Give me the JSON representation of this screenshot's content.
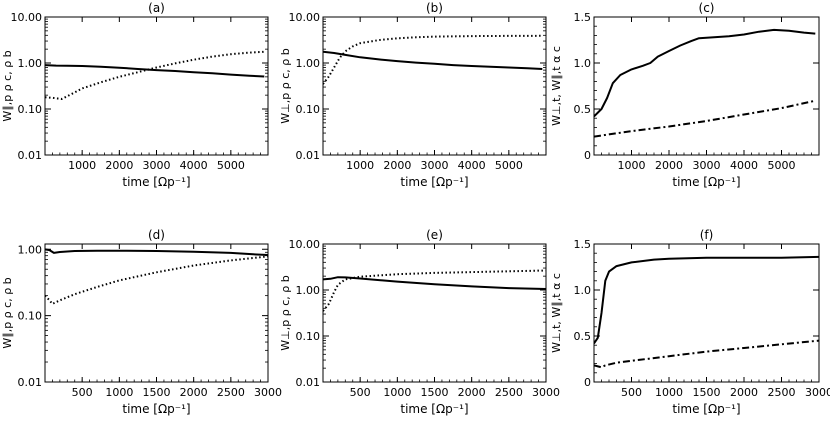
{
  "chart_data": [
    {
      "type": "line",
      "title": "(a)",
      "xlabel": "time [Ωp⁻¹]",
      "ylabel": "W∥,p ρ c, ρ b",
      "xlim": [
        0,
        6000
      ],
      "ylim": [
        0.01,
        10
      ],
      "yscale": "log",
      "xticks": [
        1000,
        2000,
        3000,
        4000,
        5000
      ],
      "yticks": [
        0.01,
        0.1,
        1,
        10
      ],
      "ytick_labels": [
        "0.01",
        "0.10",
        "1.00",
        "10.00"
      ],
      "series": [
        {
          "style": "solid",
          "points": [
            [
              0,
              0.9
            ],
            [
              300,
              0.88
            ],
            [
              600,
              0.87
            ],
            [
              1000,
              0.86
            ],
            [
              1500,
              0.83
            ],
            [
              2000,
              0.79
            ],
            [
              2500,
              0.74
            ],
            [
              3000,
              0.7
            ],
            [
              3500,
              0.67
            ],
            [
              4000,
              0.63
            ],
            [
              4500,
              0.6
            ],
            [
              5000,
              0.56
            ],
            [
              5500,
              0.53
            ],
            [
              5900,
              0.51
            ]
          ]
        },
        {
          "style": "dotted",
          "points": [
            [
              0,
              0.18
            ],
            [
              200,
              0.175
            ],
            [
              450,
              0.165
            ],
            [
              600,
              0.19
            ],
            [
              800,
              0.23
            ],
            [
              1000,
              0.28
            ],
            [
              1500,
              0.38
            ],
            [
              2000,
              0.5
            ],
            [
              2500,
              0.63
            ],
            [
              3000,
              0.8
            ],
            [
              3500,
              0.98
            ],
            [
              4000,
              1.18
            ],
            [
              4500,
              1.38
            ],
            [
              5000,
              1.55
            ],
            [
              5500,
              1.68
            ],
            [
              5900,
              1.75
            ]
          ]
        }
      ]
    },
    {
      "type": "line",
      "title": "(b)",
      "xlabel": "time [Ωp⁻¹]",
      "ylabel": "W⊥,p ρ c, ρ b",
      "xlim": [
        0,
        6000
      ],
      "ylim": [
        0.01,
        10
      ],
      "yscale": "log",
      "xticks": [
        1000,
        2000,
        3000,
        4000,
        5000
      ],
      "yticks": [
        0.01,
        0.1,
        1,
        10
      ],
      "ytick_labels": [
        "0.01",
        "0.10",
        "1.00",
        "10.00"
      ],
      "series": [
        {
          "style": "solid",
          "points": [
            [
              0,
              1.75
            ],
            [
              300,
              1.65
            ],
            [
              600,
              1.5
            ],
            [
              1000,
              1.33
            ],
            [
              1500,
              1.2
            ],
            [
              2000,
              1.1
            ],
            [
              2500,
              1.02
            ],
            [
              3000,
              0.96
            ],
            [
              3500,
              0.9
            ],
            [
              4000,
              0.86
            ],
            [
              4500,
              0.83
            ],
            [
              5000,
              0.8
            ],
            [
              5500,
              0.77
            ],
            [
              5900,
              0.74
            ]
          ]
        },
        {
          "style": "dotted",
          "points": [
            [
              0,
              0.35
            ],
            [
              150,
              0.5
            ],
            [
              300,
              0.8
            ],
            [
              450,
              1.3
            ],
            [
              600,
              1.8
            ],
            [
              800,
              2.3
            ],
            [
              1000,
              2.7
            ],
            [
              1500,
              3.15
            ],
            [
              2000,
              3.45
            ],
            [
              2500,
              3.62
            ],
            [
              3000,
              3.75
            ],
            [
              4000,
              3.85
            ],
            [
              5000,
              3.88
            ],
            [
              5900,
              3.9
            ]
          ]
        }
      ]
    },
    {
      "type": "line",
      "title": "(c)",
      "xlabel": "time [Ωp⁻¹]",
      "ylabel": "W⊥,t, W∥,t α c",
      "xlim": [
        0,
        6000
      ],
      "ylim": [
        0,
        1.5
      ],
      "yscale": "linear",
      "xticks": [
        1000,
        2000,
        3000,
        4000,
        5000
      ],
      "yticks": [
        0,
        0.5,
        1,
        1.5
      ],
      "ytick_labels": [
        "0",
        "0.5",
        "1.0",
        "1.5"
      ],
      "series": [
        {
          "style": "solid",
          "points": [
            [
              0,
              0.42
            ],
            [
              200,
              0.5
            ],
            [
              350,
              0.62
            ],
            [
              500,
              0.78
            ],
            [
              700,
              0.87
            ],
            [
              1000,
              0.93
            ],
            [
              1300,
              0.97
            ],
            [
              1500,
              1.0
            ],
            [
              1700,
              1.07
            ],
            [
              2000,
              1.13
            ],
            [
              2300,
              1.19
            ],
            [
              2600,
              1.24
            ],
            [
              2800,
              1.27
            ],
            [
              3200,
              1.28
            ],
            [
              3600,
              1.29
            ],
            [
              4000,
              1.31
            ],
            [
              4400,
              1.34
            ],
            [
              4800,
              1.36
            ],
            [
              5200,
              1.35
            ],
            [
              5600,
              1.33
            ],
            [
              5900,
              1.32
            ]
          ]
        },
        {
          "style": "dashdot",
          "points": [
            [
              0,
              0.2
            ],
            [
              1000,
              0.26
            ],
            [
              2000,
              0.31
            ],
            [
              3000,
              0.37
            ],
            [
              4000,
              0.44
            ],
            [
              5000,
              0.51
            ],
            [
              5900,
              0.59
            ]
          ]
        }
      ]
    },
    {
      "type": "line",
      "title": "(d)",
      "xlabel": "time [Ωp⁻¹]",
      "ylabel": "W∥,p ρ c, ρ b",
      "xlim": [
        0,
        3000
      ],
      "ylim": [
        0.01,
        1.2
      ],
      "yscale": "log",
      "xticks": [
        500,
        1000,
        1500,
        2000,
        2500,
        3000
      ],
      "yticks": [
        0.01,
        0.1,
        1
      ],
      "ytick_labels": [
        "0.01",
        "0.10",
        "1.00"
      ],
      "series": [
        {
          "style": "solid",
          "points": [
            [
              0,
              1.0
            ],
            [
              60,
              0.97
            ],
            [
              120,
              0.88
            ],
            [
              200,
              0.91
            ],
            [
              400,
              0.94
            ],
            [
              700,
              0.95
            ],
            [
              1000,
              0.95
            ],
            [
              1500,
              0.94
            ],
            [
              2000,
              0.92
            ],
            [
              2500,
              0.88
            ],
            [
              2800,
              0.84
            ],
            [
              3000,
              0.82
            ]
          ]
        },
        {
          "style": "dotted",
          "points": [
            [
              0,
              0.2
            ],
            [
              60,
              0.17
            ],
            [
              100,
              0.15
            ],
            [
              200,
              0.17
            ],
            [
              400,
              0.21
            ],
            [
              700,
              0.27
            ],
            [
              1000,
              0.34
            ],
            [
              1500,
              0.45
            ],
            [
              2000,
              0.57
            ],
            [
              2500,
              0.68
            ],
            [
              3000,
              0.78
            ]
          ]
        }
      ]
    },
    {
      "type": "line",
      "title": "(e)",
      "xlabel": "time [Ωp⁻¹]",
      "ylabel": "W⊥,p ρ c, ρ b",
      "xlim": [
        0,
        3000
      ],
      "ylim": [
        0.01,
        10
      ],
      "yscale": "log",
      "xticks": [
        500,
        1000,
        1500,
        2000,
        2500,
        3000
      ],
      "yticks": [
        0.01,
        0.1,
        1,
        10
      ],
      "ytick_labels": [
        "0.01",
        "0.10",
        "1.00",
        "10.00"
      ],
      "series": [
        {
          "style": "solid",
          "points": [
            [
              0,
              1.7
            ],
            [
              100,
              1.75
            ],
            [
              200,
              1.9
            ],
            [
              300,
              1.88
            ],
            [
              500,
              1.78
            ],
            [
              800,
              1.62
            ],
            [
              1000,
              1.52
            ],
            [
              1500,
              1.34
            ],
            [
              2000,
              1.2
            ],
            [
              2500,
              1.1
            ],
            [
              3000,
              1.05
            ]
          ]
        },
        {
          "style": "dotted",
          "points": [
            [
              0,
              0.35
            ],
            [
              80,
              0.5
            ],
            [
              150,
              0.9
            ],
            [
              200,
              1.3
            ],
            [
              300,
              1.7
            ],
            [
              500,
              1.95
            ],
            [
              800,
              2.1
            ],
            [
              1000,
              2.2
            ],
            [
              1500,
              2.35
            ],
            [
              2000,
              2.45
            ],
            [
              2500,
              2.55
            ],
            [
              3000,
              2.65
            ]
          ]
        }
      ]
    },
    {
      "type": "line",
      "title": "(f)",
      "xlabel": "time [Ωp⁻¹]",
      "ylabel": "W⊥,t, W∥,t α c",
      "xlim": [
        0,
        3000
      ],
      "ylim": [
        0,
        1.5
      ],
      "yscale": "linear",
      "xticks": [
        500,
        1000,
        1500,
        2000,
        2500,
        3000
      ],
      "yticks": [
        0,
        0.5,
        1,
        1.5
      ],
      "ytick_labels": [
        "0",
        "0.5",
        "1.0",
        "1.5"
      ],
      "series": [
        {
          "style": "solid",
          "points": [
            [
              0,
              0.42
            ],
            [
              50,
              0.48
            ],
            [
              100,
              0.75
            ],
            [
              150,
              1.1
            ],
            [
              200,
              1.2
            ],
            [
              300,
              1.26
            ],
            [
              500,
              1.3
            ],
            [
              800,
              1.33
            ],
            [
              1000,
              1.34
            ],
            [
              1500,
              1.35
            ],
            [
              2000,
              1.35
            ],
            [
              2500,
              1.35
            ],
            [
              3000,
              1.36
            ]
          ]
        },
        {
          "style": "dashdot",
          "points": [
            [
              0,
              0.18
            ],
            [
              100,
              0.16
            ],
            [
              150,
              0.18
            ],
            [
              300,
              0.21
            ],
            [
              600,
              0.24
            ],
            [
              1000,
              0.28
            ],
            [
              1500,
              0.33
            ],
            [
              2000,
              0.37
            ],
            [
              2500,
              0.41
            ],
            [
              3000,
              0.45
            ]
          ]
        }
      ]
    }
  ]
}
